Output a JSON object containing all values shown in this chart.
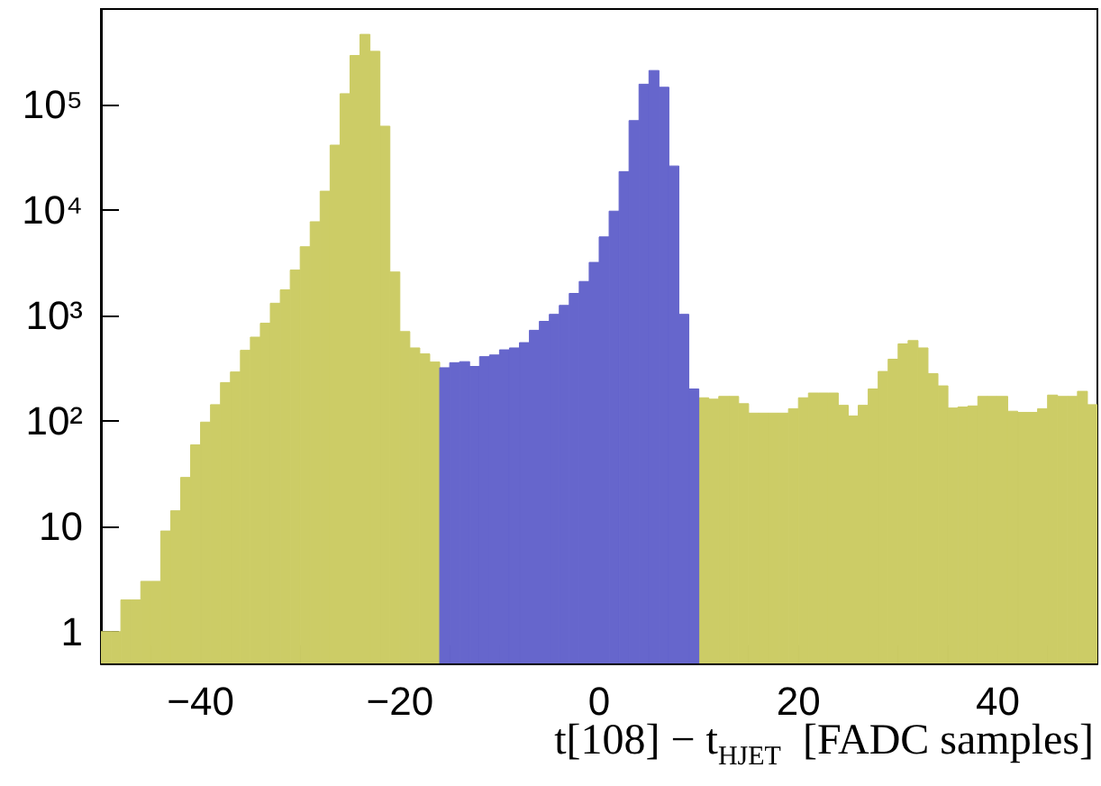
{
  "chart_data": {
    "type": "histogram",
    "xlabel": "t[108] − t$_{HJET}$  [FADC samples]",
    "bins": [
      -50,
      -49,
      -48,
      -47,
      -46,
      -45,
      -44,
      -43,
      -42,
      -41,
      -40,
      -39,
      -38,
      -37,
      -36,
      -35,
      -34,
      -33,
      -32,
      -31,
      -30,
      -29,
      -28,
      -27,
      -26,
      -25,
      -24,
      -23,
      -22,
      -21,
      -20,
      -19,
      -18,
      -17,
      -16,
      -15,
      -14,
      -13,
      -12,
      -11,
      -10,
      -9,
      -8,
      -7,
      -6,
      -5,
      -4,
      -3,
      -2,
      -1,
      0,
      1,
      2,
      3,
      4,
      5,
      6,
      7,
      8,
      9,
      10,
      11,
      12,
      13,
      14,
      15,
      16,
      17,
      18,
      19,
      20,
      21,
      22,
      23,
      24,
      25,
      26,
      27,
      28,
      29,
      30,
      31,
      32,
      33,
      34,
      35,
      36,
      37,
      38,
      39,
      40,
      41,
      42,
      43,
      44,
      45,
      46,
      47,
      48,
      49,
      50
    ],
    "series": [
      {
        "color": "#cccc66",
        "values": [
          1,
          1,
          2,
          2,
          3,
          3,
          9,
          14,
          29,
          59,
          97,
          142,
          230,
          290,
          465,
          620,
          840,
          1300,
          1740,
          2680,
          4460,
          7700,
          15000,
          41000,
          126000,
          290000,
          460000,
          318000,
          62000,
          2570,
          700,
          490,
          430,
          360,
          null,
          null,
          null,
          null,
          null,
          null,
          null,
          null,
          null,
          null,
          null,
          null,
          null,
          null,
          null,
          null,
          null,
          null,
          null,
          null,
          null,
          null,
          null,
          null,
          null,
          null,
          165,
          160,
          170,
          170,
          145,
          118,
          118,
          118,
          118,
          130,
          165,
          183,
          183,
          183,
          140,
          111,
          140,
          200,
          293,
          383,
          535,
          575,
          490,
          280,
          214,
          132,
          135,
          138,
          170,
          170,
          170,
          123,
          120,
          120,
          130,
          175,
          170,
          170,
          190,
          142
        ]
      },
      {
        "color": "#6666cc",
        "values": [
          null,
          null,
          null,
          null,
          null,
          null,
          null,
          null,
          null,
          null,
          null,
          null,
          null,
          null,
          null,
          null,
          null,
          null,
          null,
          null,
          null,
          null,
          null,
          null,
          null,
          null,
          null,
          null,
          null,
          null,
          null,
          null,
          null,
          null,
          318,
          355,
          363,
          327,
          405,
          420,
          470,
          490,
          550,
          720,
          875,
          1020,
          1240,
          1610,
          2090,
          3170,
          5530,
          9700,
          23000,
          70000,
          155000,
          209000,
          145000,
          26000,
          1020,
          200,
          null,
          null,
          null,
          null,
          null,
          null,
          null,
          null,
          null,
          null,
          null,
          null,
          null,
          null,
          null,
          null,
          null,
          null,
          null,
          null,
          null,
          null,
          null,
          null,
          null,
          null,
          null,
          null,
          null,
          null,
          null,
          null,
          null,
          null,
          null,
          null,
          null,
          null,
          null,
          null
        ]
      }
    ],
    "log": "y",
    "xlim": [
      -50,
      50
    ],
    "xticks": [
      {
        "value": -45,
        "label": null
      },
      {
        "value": -40,
        "label": "−40"
      },
      {
        "value": -35,
        "label": null
      },
      {
        "value": -30,
        "label": null
      },
      {
        "value": -25,
        "label": null
      },
      {
        "value": -20,
        "label": "−20"
      },
      {
        "value": -15,
        "label": null
      },
      {
        "value": -10,
        "label": null
      },
      {
        "value": -5,
        "label": null
      },
      0,
      {
        "value": 5,
        "label": null
      },
      {
        "value": 10,
        "label": null
      },
      {
        "value": 15,
        "label": null
      },
      20,
      {
        "value": 25,
        "label": null
      },
      {
        "value": 30,
        "label": null
      },
      {
        "value": 35,
        "label": null
      },
      40,
      {
        "value": 45,
        "label": null
      }
    ],
    "ylim": [
      0.5,
      800000
    ],
    "yticks": [
      1,
      10,
      {
        "value": 100,
        "label": "10²"
      },
      {
        "value": 1000,
        "label": "10³"
      },
      {
        "value": 10000,
        "label": "10⁴"
      },
      {
        "value": 100000,
        "label": "10⁵"
      }
    ],
    "grid": false
  }
}
